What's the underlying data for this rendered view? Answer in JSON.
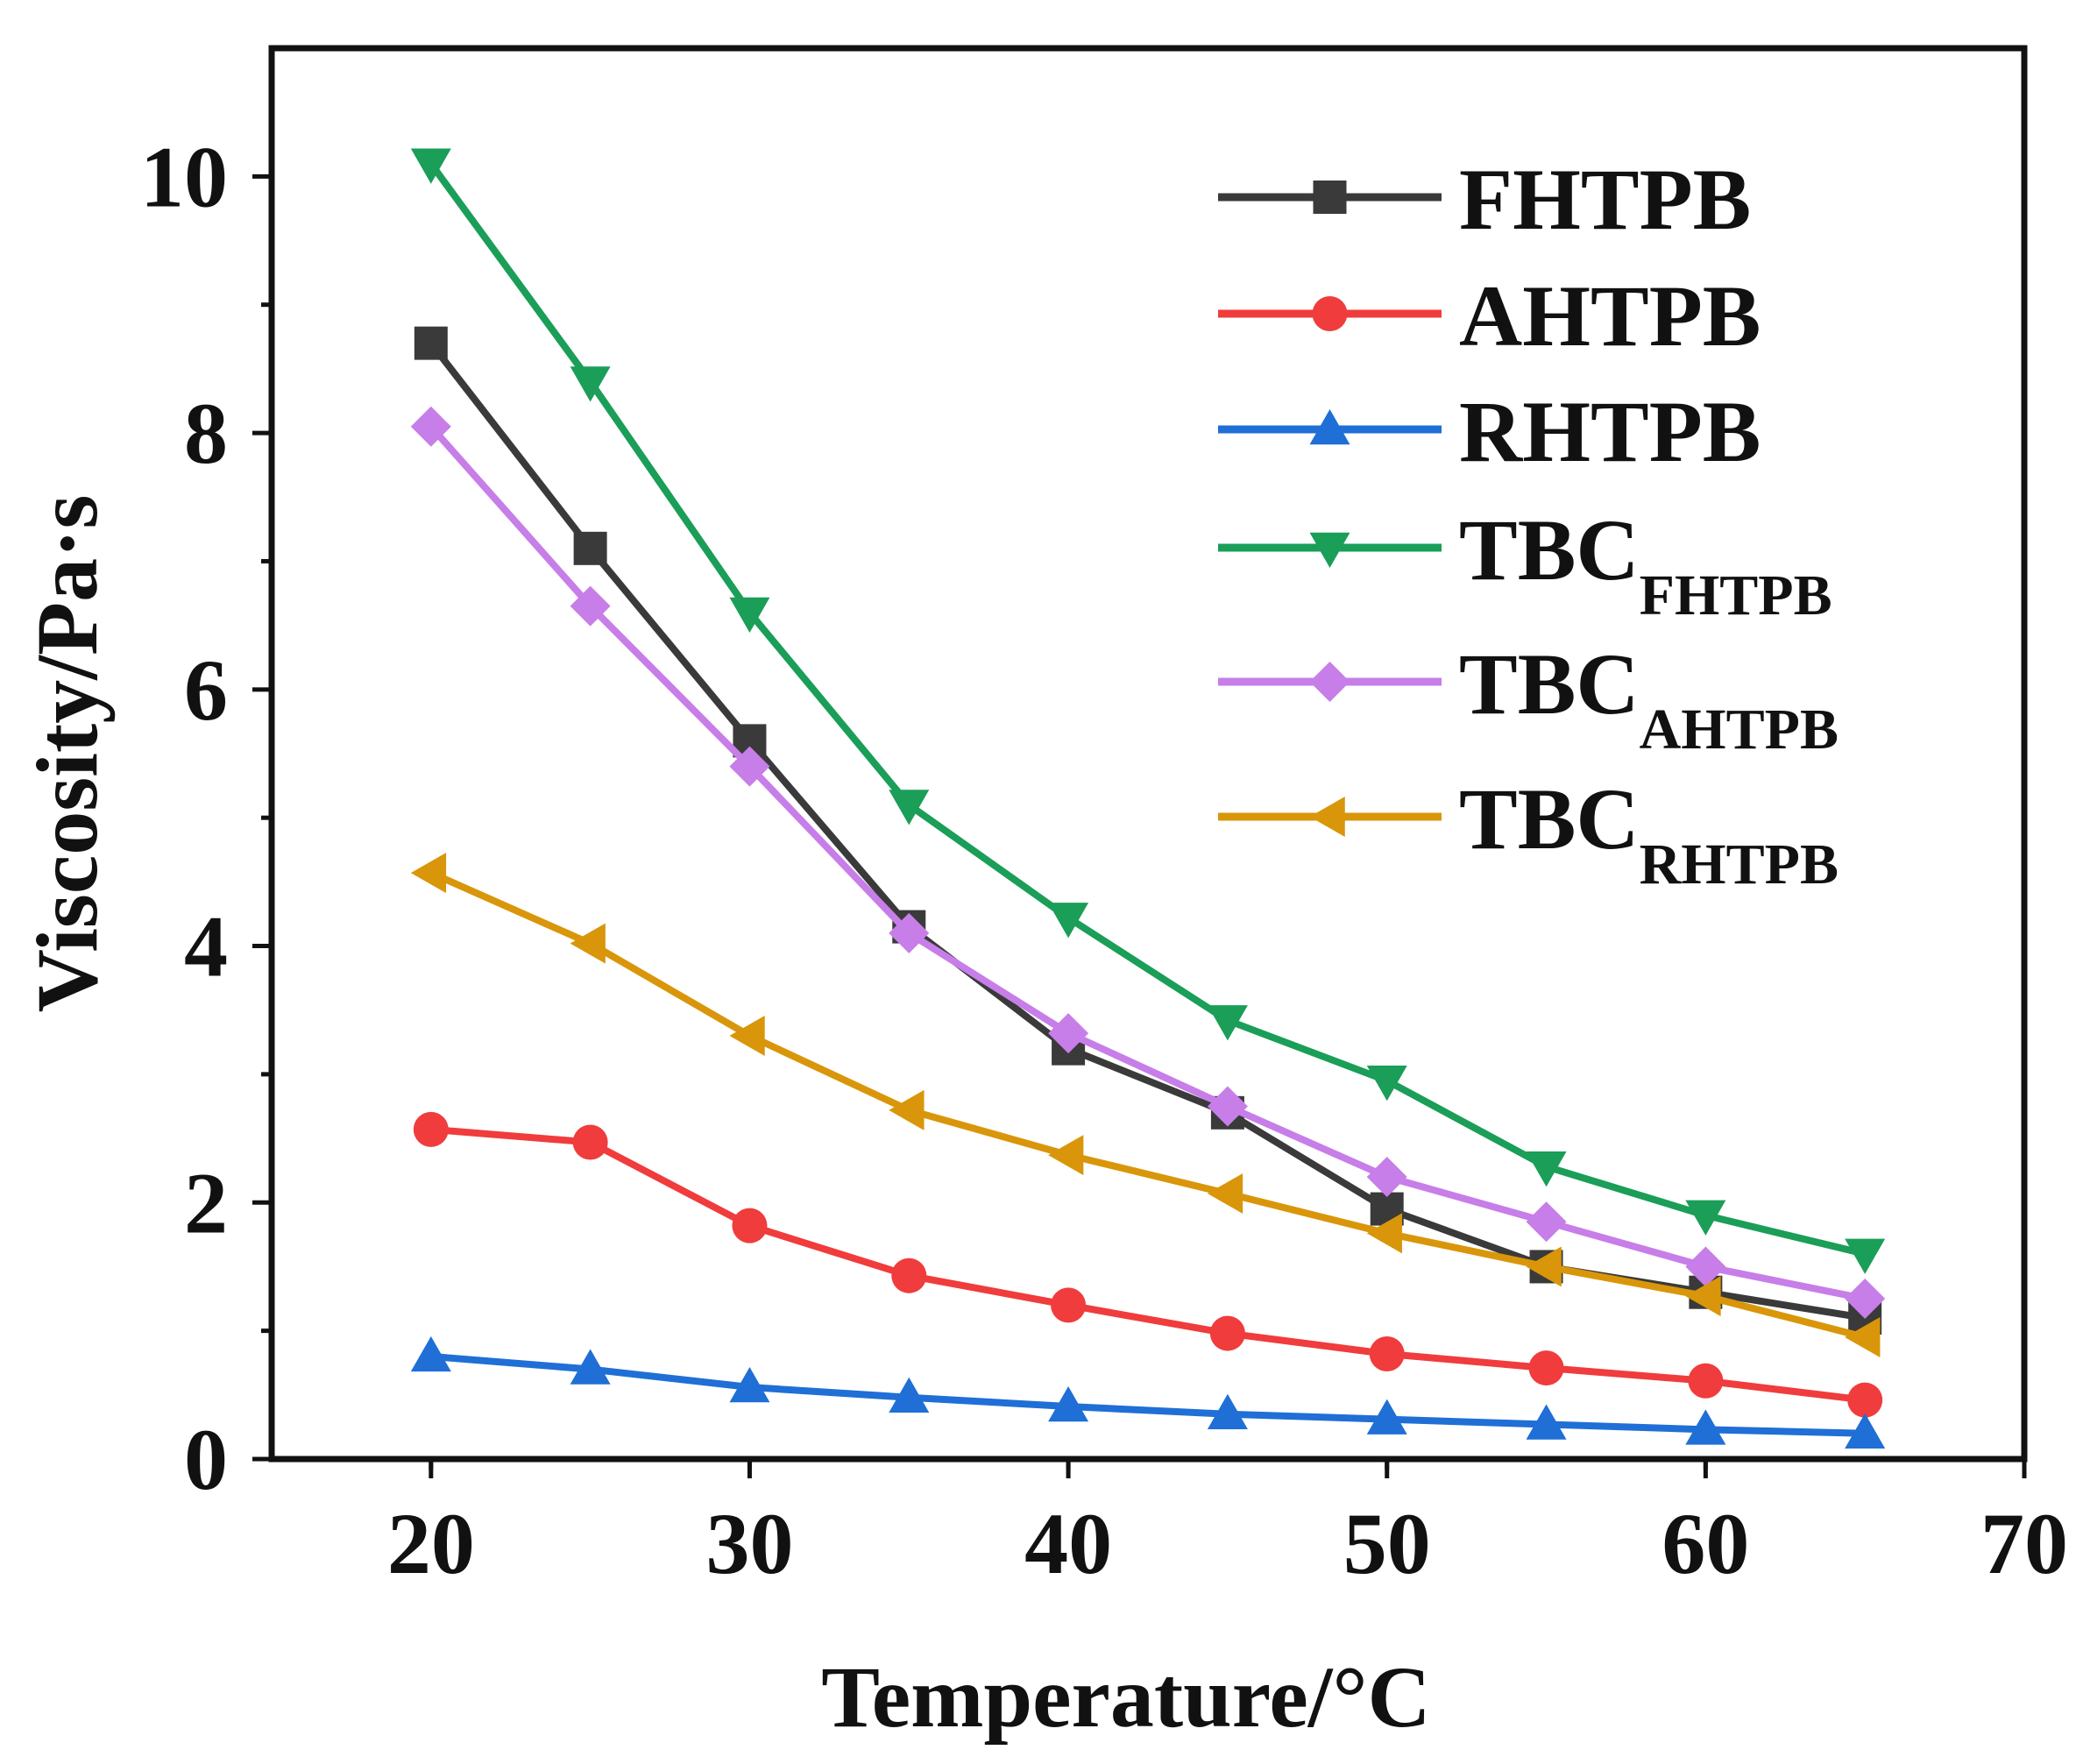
{
  "chart_data": {
    "type": "line",
    "xlabel": "Temperature/°C",
    "ylabel": "Viscosity/Pa·s",
    "xlim": [
      15,
      70
    ],
    "ylim": [
      0,
      11
    ],
    "xticks": [
      20,
      30,
      40,
      50,
      60,
      70
    ],
    "yticks": [
      0,
      2,
      4,
      6,
      8,
      10
    ],
    "x": [
      20,
      25,
      30,
      35,
      40,
      45,
      50,
      55,
      60,
      65
    ],
    "legend_position": "top-right",
    "series": [
      {
        "name": "FHTPB",
        "sub": "",
        "color": "#3a3a3a",
        "marker": "square",
        "values": [
          8.7,
          7.1,
          5.6,
          4.15,
          3.2,
          2.7,
          1.95,
          1.5,
          1.3,
          1.1
        ]
      },
      {
        "name": "AHTPB",
        "sub": "",
        "color": "#f03c3c",
        "marker": "circle",
        "values": [
          2.57,
          2.47,
          1.82,
          1.43,
          1.2,
          0.98,
          0.82,
          0.71,
          0.61,
          0.46
        ]
      },
      {
        "name": "RHTPB",
        "sub": "",
        "color": "#1f6fd6",
        "marker": "triangle-up",
        "values": [
          0.8,
          0.7,
          0.56,
          0.48,
          0.41,
          0.35,
          0.31,
          0.27,
          0.23,
          0.2
        ]
      },
      {
        "name": "TBC",
        "sub": "FHTPB",
        "color": "#1a9e58",
        "marker": "triangle-down",
        "values": [
          10.1,
          8.4,
          6.6,
          5.1,
          4.22,
          3.42,
          2.95,
          2.28,
          1.9,
          1.6
        ]
      },
      {
        "name": "TBC",
        "sub": "AHTPB",
        "color": "#c77ee8",
        "marker": "diamond",
        "values": [
          8.05,
          6.65,
          5.4,
          4.1,
          3.32,
          2.75,
          2.2,
          1.85,
          1.5,
          1.25
        ]
      },
      {
        "name": "TBC",
        "sub": "RHTPB",
        "color": "#d9960a",
        "marker": "triangle-left",
        "values": [
          4.57,
          4.02,
          3.3,
          2.72,
          2.37,
          2.07,
          1.76,
          1.5,
          1.27,
          0.95
        ]
      }
    ]
  }
}
